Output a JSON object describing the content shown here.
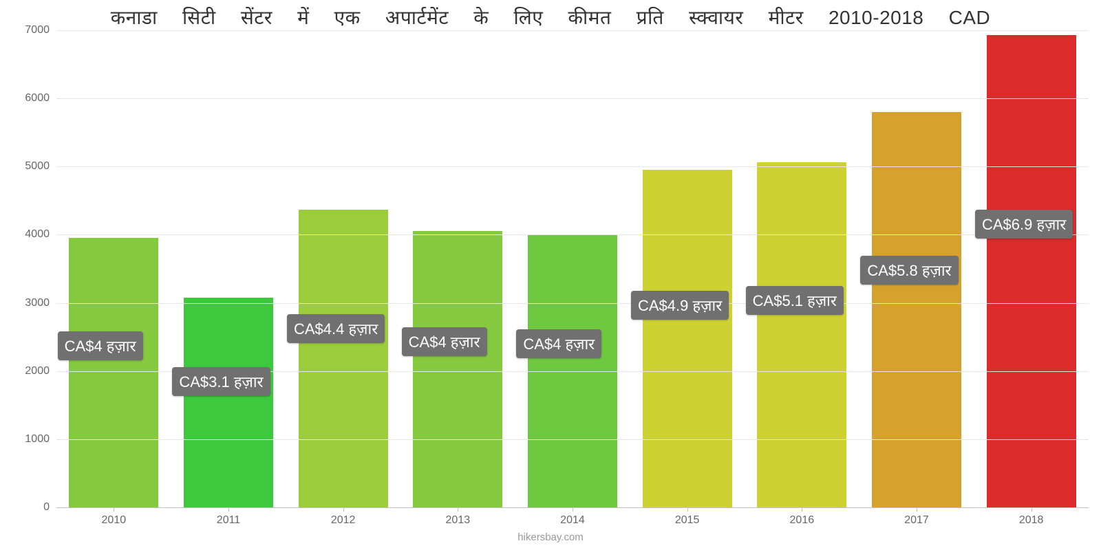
{
  "chart": {
    "type": "bar",
    "title": "कनाडा सिटी सेंटर में एक अपार्टमेंट के लिए कीमत प्रति स्क्वायर मीटर 2010-2018 CAD",
    "title_color": "#333333",
    "title_fontsize": 28,
    "background_color": "#ffffff",
    "grid_color": "#e6e6e6",
    "axis_color": "#c2c2c2",
    "tick_label_color": "#666666",
    "tick_label_fontsize": 16,
    "ylim": [
      0,
      7000
    ],
    "ytick_step": 1000,
    "yticks": [
      0,
      1000,
      2000,
      3000,
      4000,
      5000,
      6000,
      7000
    ],
    "bar_width": 0.78,
    "categories": [
      "2010",
      "2011",
      "2012",
      "2013",
      "2014",
      "2015",
      "2016",
      "2017",
      "2018"
    ],
    "values": [
      3950,
      3080,
      4370,
      4050,
      4000,
      4950,
      5060,
      5800,
      6930
    ],
    "bar_colors": [
      "#84c93e",
      "#3dc93e",
      "#9acc3c",
      "#84c93e",
      "#6fc93e",
      "#cdd133",
      "#cdd133",
      "#d6a22b",
      "#db2b2b"
    ],
    "value_labels": [
      "CA$4 हज़ार",
      "CA$3.1 हज़ार",
      "CA$4.4 हज़ार",
      "CA$4 हज़ार",
      "CA$4 हज़ार",
      "CA$4.9 हज़ार",
      "CA$5.1 हज़ार",
      "CA$5.8 हज़ार",
      "CA$6.9 हज़ार"
    ],
    "value_label_bg": "#707070",
    "value_label_text_color": "#ffffff",
    "value_label_fontsize": 22,
    "credit": "hikersbay.com",
    "credit_color": "#999999",
    "credit_fontsize": 15
  }
}
